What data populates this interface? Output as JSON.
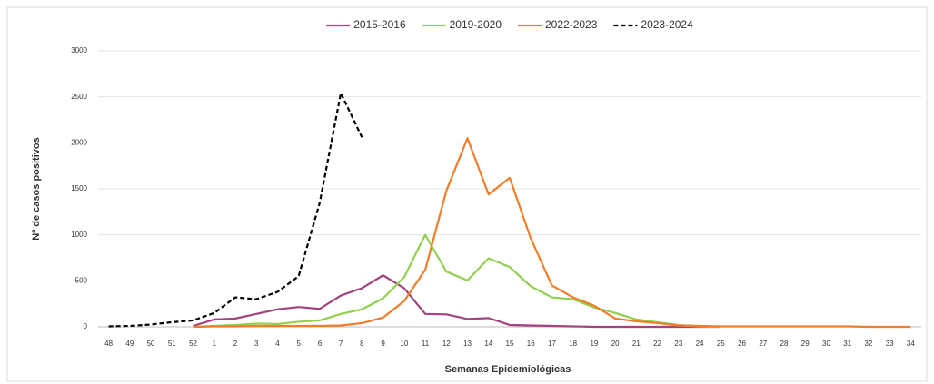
{
  "chart_data": {
    "type": "line",
    "x_label": "Semanas Epidemiológicas",
    "y_label": "Nº de casos positivos",
    "categories": [
      "48",
      "49",
      "50",
      "51",
      "52",
      "1",
      "2",
      "3",
      "4",
      "5",
      "6",
      "7",
      "8",
      "9",
      "10",
      "11",
      "12",
      "13",
      "14",
      "15",
      "16",
      "17",
      "18",
      "19",
      "20",
      "21",
      "22",
      "23",
      "24",
      "25",
      "26",
      "27",
      "28",
      "29",
      "30",
      "31",
      "32",
      "33",
      "34"
    ],
    "series": [
      {
        "name": "2015-2016",
        "color": "#a2457f",
        "line_style": "solid",
        "values": [
          null,
          null,
          null,
          null,
          10,
          80,
          90,
          140,
          190,
          215,
          195,
          340,
          420,
          560,
          420,
          140,
          135,
          85,
          95,
          20,
          15,
          10,
          5,
          0,
          0,
          0,
          0,
          0,
          0,
          0,
          null,
          null,
          null,
          null,
          null,
          null,
          null,
          null,
          null
        ]
      },
      {
        "name": "2019-2020",
        "color": "#92d050",
        "line_style": "solid",
        "values": [
          null,
          null,
          null,
          null,
          0,
          10,
          20,
          35,
          30,
          55,
          70,
          140,
          190,
          310,
          540,
          1000,
          600,
          505,
          745,
          650,
          440,
          320,
          300,
          210,
          150,
          80,
          50,
          20,
          5,
          0,
          null,
          null,
          null,
          null,
          null,
          null,
          null,
          null,
          null
        ]
      },
      {
        "name": "2022-2023",
        "color": "#f07d2a",
        "line_style": "solid",
        "values": [
          null,
          null,
          null,
          null,
          0,
          5,
          5,
          10,
          10,
          10,
          10,
          15,
          40,
          100,
          280,
          620,
          1480,
          2050,
          1440,
          1620,
          960,
          450,
          320,
          230,
          90,
          60,
          40,
          15,
          10,
          5,
          5,
          5,
          5,
          5,
          5,
          5,
          0,
          0,
          0
        ]
      },
      {
        "name": "2023-2024",
        "color": "#000000",
        "line_style": "dashed",
        "values": [
          5,
          10,
          25,
          50,
          70,
          150,
          320,
          300,
          380,
          550,
          1350,
          2540,
          2060,
          null,
          null,
          null,
          null,
          null,
          null,
          null,
          null,
          null,
          null,
          null,
          null,
          null,
          null,
          null,
          null,
          null,
          null,
          null,
          null,
          null,
          null,
          null,
          null,
          null,
          null
        ]
      }
    ],
    "ylim": [
      0,
      3000
    ],
    "yticks": [
      0,
      500,
      1000,
      1500,
      2000,
      2500,
      3000
    ],
    "grid": true,
    "legend": "top"
  }
}
